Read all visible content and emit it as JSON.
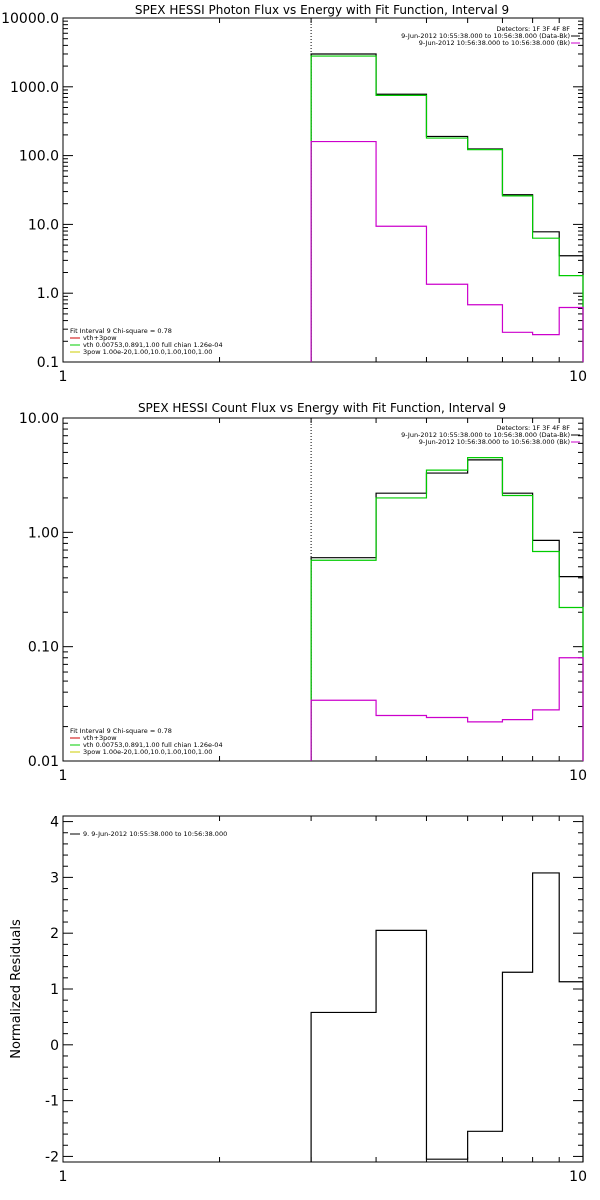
{
  "chart_data": [
    {
      "type": "line",
      "title": "SPEX HESSI Photon Flux vs Energy with Fit Function, Interval 9",
      "xscale": "log",
      "yscale": "log",
      "xlim": [
        1,
        10
      ],
      "ylim": [
        0.1,
        10000
      ],
      "xticks": [
        1,
        10
      ],
      "xtick_labels": [
        "1",
        "10"
      ],
      "yticks": [
        0.1,
        1,
        10,
        100,
        1000,
        10000
      ],
      "ytick_labels": [
        "0.1",
        "1.0",
        "10.0",
        "100.0",
        "1000.0",
        "10000.0"
      ],
      "ylabel": "",
      "vline_x": 3.0,
      "legend_top_right": [
        "Detectors: 1F 3F 4F 8F",
        "9-Jun-2012 10:55:38.000 to 10:56:38.000 (Data-Bk)",
        "9-Jun-2012 10:56:38.000 to 10:56:38.000 (Bk)"
      ],
      "legend_bottom_left": [
        "Fit Interval 9   Chi-square = 0.78",
        "vth+3pow",
        "vth 0.00753,0.891,1.00  full chian 1.26e-04",
        "3pow 1.00e-20,1.00,10.0,1.00,100,1.00"
      ],
      "edges": [
        3.0,
        4.0,
        5.0,
        6.0,
        7.0,
        8.0,
        9.0,
        10.0
      ],
      "series": [
        {
          "color": "#000000",
          "values": [
            3000,
            780,
            190,
            125,
            27,
            7.8,
            3.5
          ]
        },
        {
          "color": "#00cc00",
          "values": [
            2800,
            750,
            180,
            122,
            26,
            6.3,
            1.8
          ]
        },
        {
          "color": "#cc00cc",
          "values": [
            160,
            9.4,
            1.35,
            0.68,
            0.27,
            0.25,
            0.62
          ]
        }
      ]
    },
    {
      "type": "line",
      "title": "SPEX HESSI Count Flux vs Energy with Fit Function, Interval 9",
      "xscale": "log",
      "yscale": "log",
      "xlim": [
        1,
        10
      ],
      "ylim": [
        0.01,
        10
      ],
      "xticks": [
        1,
        10
      ],
      "xtick_labels": [
        "1",
        "10"
      ],
      "yticks": [
        0.01,
        0.1,
        1,
        10
      ],
      "ytick_labels": [
        "0.01",
        "0.10",
        "1.00",
        "10.00"
      ],
      "ylabel": "",
      "vline_x": 3.0,
      "legend_top_right": [
        "Detectors: 1F 3F 4F 8F",
        "9-Jun-2012 10:55:38.000 to 10:56:38.000 (Data-Bk)",
        "9-Jun-2012 10:56:38.000 to 10:56:38.000 (Bk)"
      ],
      "legend_bottom_left": [
        "Fit Interval 9   Chi-square = 0.78",
        "vth+3pow",
        "vth 0.00753,0.891,1.00  full chian 1.26e-04",
        "3pow 1.00e-20,1.00,10.0,1.00,100,1.00"
      ],
      "edges": [
        3.0,
        4.0,
        5.0,
        6.0,
        7.0,
        8.0,
        9.0,
        10.0
      ],
      "series": [
        {
          "color": "#000000",
          "values": [
            0.6,
            2.2,
            3.3,
            4.3,
            2.2,
            0.85,
            0.41
          ]
        },
        {
          "color": "#00cc00",
          "values": [
            0.57,
            2.0,
            3.5,
            4.5,
            2.1,
            0.68,
            0.22
          ]
        },
        {
          "color": "#cc00cc",
          "values": [
            0.034,
            0.025,
            0.024,
            0.022,
            0.023,
            0.028,
            0.08
          ]
        }
      ]
    },
    {
      "type": "line",
      "title": "",
      "xscale": "log",
      "yscale": "linear",
      "xlim": [
        1,
        10
      ],
      "ylim": [
        -2.1,
        4.1
      ],
      "xticks": [
        1,
        10
      ],
      "xtick_labels": [
        "1",
        "10"
      ],
      "yticks": [
        -2,
        -1,
        0,
        1,
        2,
        3,
        4
      ],
      "ytick_labels": [
        "-2",
        "-1",
        "0",
        "1",
        "2",
        "3",
        "4"
      ],
      "ylabel": "Normalized Residuals",
      "legend_top_left": [
        "9. 9-Jun-2012 10:55:38.000 to 10:56:38.000"
      ],
      "edges": [
        3.0,
        4.0,
        5.0,
        6.0,
        7.0,
        8.0,
        9.0,
        10.0
      ],
      "series": [
        {
          "color": "#000000",
          "values": [
            0.58,
            2.05,
            -2.05,
            -1.55,
            1.3,
            3.08,
            1.13
          ]
        }
      ]
    }
  ]
}
